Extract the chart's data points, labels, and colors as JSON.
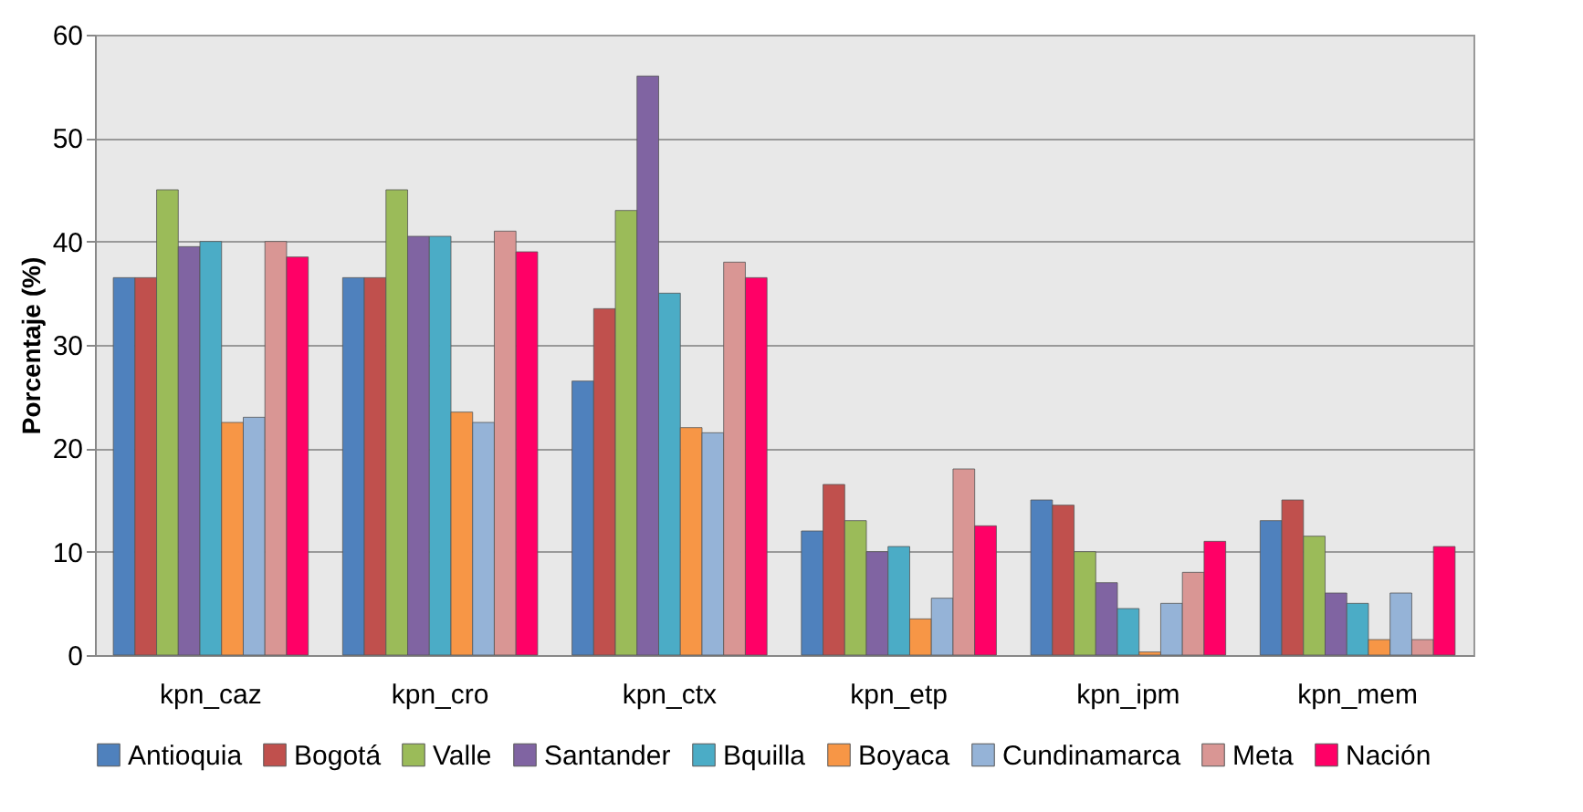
{
  "chart_data": {
    "type": "bar",
    "ylabel": "Porcentaje (%)",
    "categories": [
      "kpn_caz",
      "kpn_cro",
      "kpn_ctx",
      "kpn_etp",
      "kpn_ipm",
      "kpn_mem"
    ],
    "series": [
      {
        "name": "Antioquia",
        "color": "#4f81bd",
        "values": [
          36.5,
          36.5,
          26.5,
          12,
          15,
          13
        ]
      },
      {
        "name": "Bogotá",
        "color": "#c0504d",
        "values": [
          36.5,
          36.5,
          33.5,
          16.5,
          14.5,
          15
        ]
      },
      {
        "name": "Valle",
        "color": "#9bbb59",
        "values": [
          45,
          45,
          43,
          13,
          10,
          11.5
        ]
      },
      {
        "name": "Santander",
        "color": "#8064a2",
        "values": [
          39.5,
          40.5,
          56,
          10,
          7,
          6
        ]
      },
      {
        "name": "Bquilla",
        "color": "#4bacc6",
        "values": [
          40,
          40.5,
          35,
          10.5,
          4.5,
          5
        ]
      },
      {
        "name": "Boyaca",
        "color": "#f79646",
        "values": [
          22.5,
          23.5,
          22,
          3.5,
          0.3,
          1.5
        ]
      },
      {
        "name": "Cundinamarca",
        "color": "#95b3d7",
        "values": [
          23,
          22.5,
          21.5,
          5.5,
          5,
          6
        ]
      },
      {
        "name": "Meta",
        "color": "#d99694",
        "values": [
          40,
          41,
          38,
          18,
          8,
          1.5
        ]
      },
      {
        "name": "Nación",
        "color": "#ff0066",
        "values": [
          38.5,
          39,
          36.5,
          12.5,
          11,
          10.5
        ]
      }
    ],
    "ylim": [
      0,
      60
    ],
    "yticks": [
      0,
      10,
      20,
      30,
      40,
      50,
      60
    ],
    "grid": "y",
    "legend": "bottom"
  }
}
